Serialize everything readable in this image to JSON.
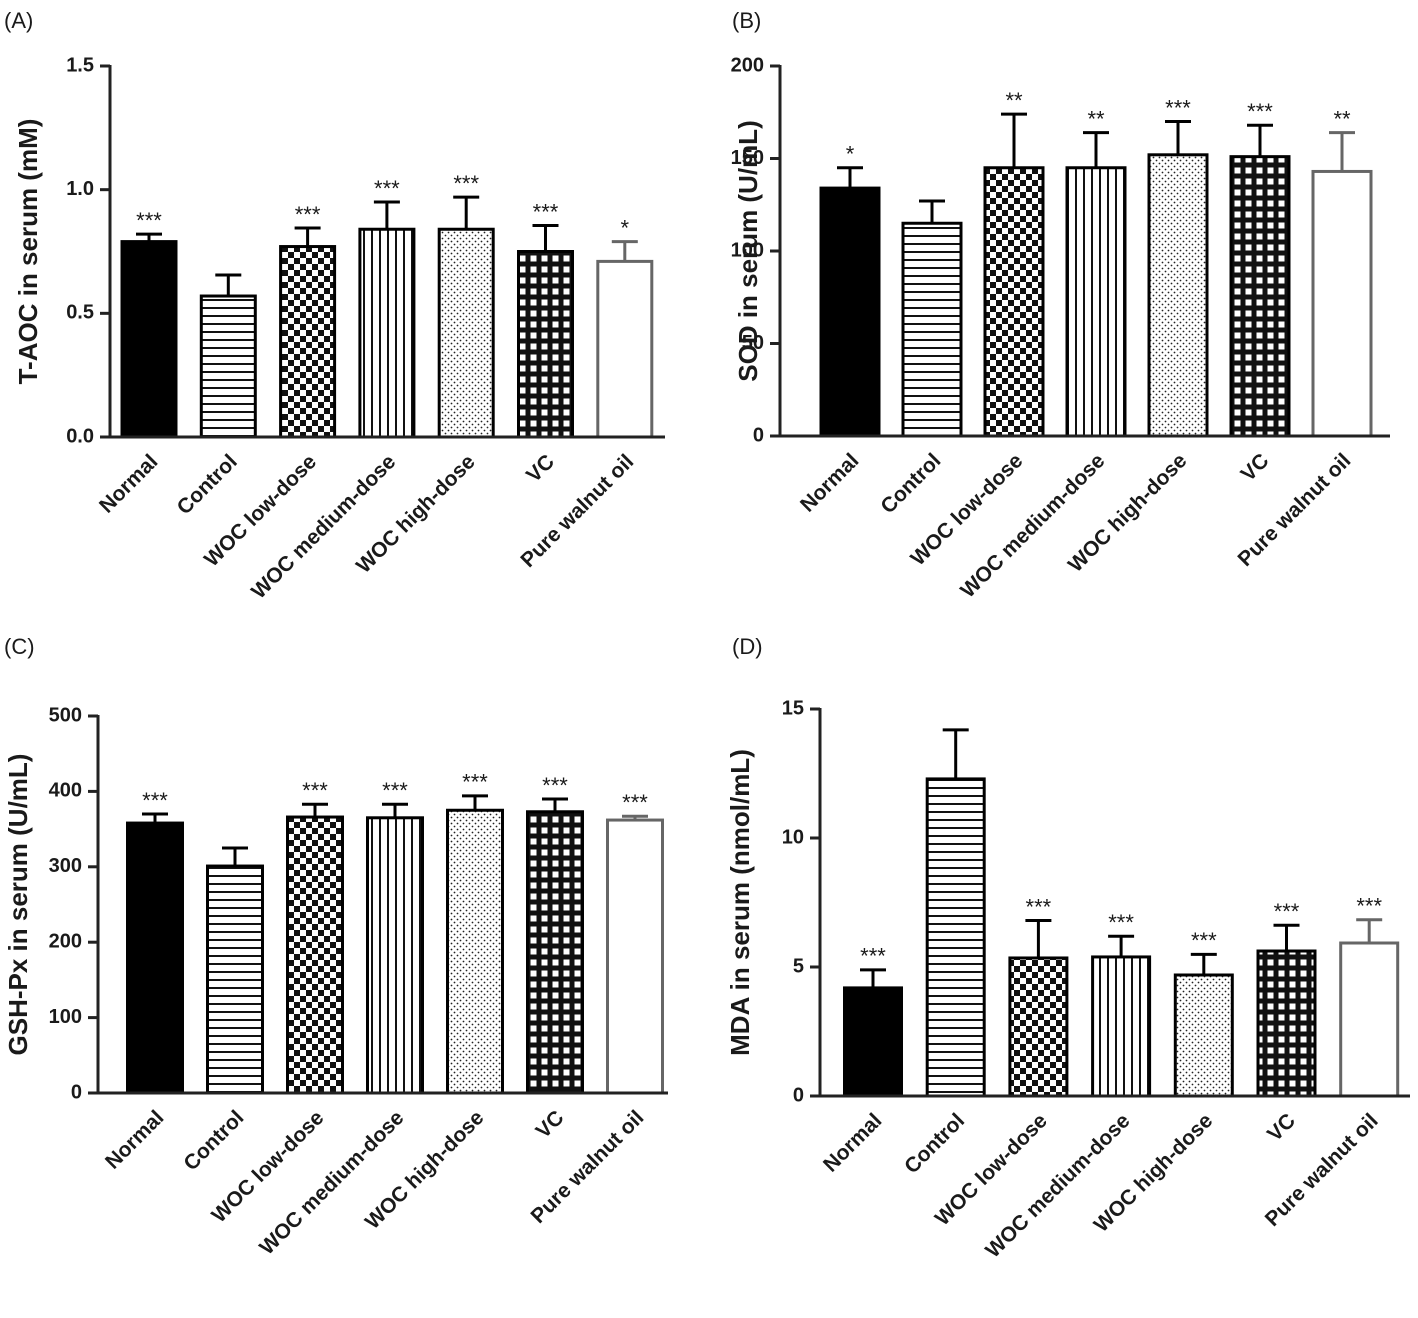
{
  "chart_data": [
    {
      "type": "bar",
      "panel_label": "(A)",
      "y_label": "T-AOC in serum (mM)",
      "categories": [
        "Normal",
        "Control",
        "WOC  low-dose",
        "WOC medium-dose",
        "WOC high-dose",
        "VC",
        "Pure walnut oil"
      ],
      "values": [
        0.79,
        0.57,
        0.77,
        0.84,
        0.84,
        0.75,
        0.71
      ],
      "errors": [
        0.03,
        0.085,
        0.075,
        0.11,
        0.13,
        0.105,
        0.08
      ],
      "significance": [
        "***",
        null,
        "***",
        "***",
        "***",
        "***",
        "*"
      ],
      "ylim": [
        0,
        1.5
      ],
      "yticks": [
        {
          "value": 0,
          "label": "0.0"
        },
        0.5,
        {
          "value": 1,
          "label": "1.0"
        },
        1.5
      ]
    },
    {
      "type": "bar",
      "panel_label": "(B)",
      "y_label": "SOD in serum (U/mL)",
      "categories": [
        "Normal",
        "Control",
        "WOC low-dose",
        "WOC medium-dose",
        "WOC high-dose",
        "VC",
        "Pure walnut oil"
      ],
      "values": [
        134,
        115,
        145,
        145,
        152,
        151,
        143
      ],
      "errors": [
        11,
        12,
        29,
        19,
        18,
        17,
        21
      ],
      "significance": [
        "*",
        null,
        "**",
        "**",
        "***",
        "***",
        "**"
      ],
      "ylim": [
        0,
        200
      ],
      "yticks": [
        0,
        50,
        100,
        150,
        200
      ]
    },
    {
      "type": "bar",
      "panel_label": "(C)",
      "y_label": "GSH-Px in serum (U/mL)",
      "categories": [
        "Normal",
        "Control",
        "WOC low-dose",
        "WOC medium-dose",
        "WOC high-dose",
        "VC",
        "Pure walnut oil"
      ],
      "values": [
        358,
        301,
        366,
        365,
        375,
        373,
        362
      ],
      "errors": [
        12,
        24,
        17,
        18,
        19,
        17,
        5
      ],
      "significance": [
        "***",
        null,
        "***",
        "***",
        "***",
        "***",
        "***"
      ],
      "ylim": [
        0,
        500
      ],
      "yticks": [
        0,
        100,
        200,
        300,
        400,
        500
      ]
    },
    {
      "type": "bar",
      "panel_label": "(D)",
      "y_label": "MDA in serum (nmol/mL)",
      "categories": [
        "Normal",
        "Control",
        "WOC low-dose",
        "WOC medium-dose",
        "WOC high-dose",
        "VC",
        "Pure walnut oil"
      ],
      "values": [
        4.19,
        12.29,
        5.35,
        5.39,
        4.69,
        5.62,
        5.93
      ],
      "errors": [
        0.7,
        1.9,
        1.45,
        0.8,
        0.8,
        1.0,
        0.9
      ],
      "significance": [
        "***",
        null,
        "***",
        "***",
        "***",
        "***",
        "***"
      ],
      "ylim": [
        0,
        15
      ],
      "yticks": [
        0,
        5,
        10,
        15
      ]
    }
  ]
}
